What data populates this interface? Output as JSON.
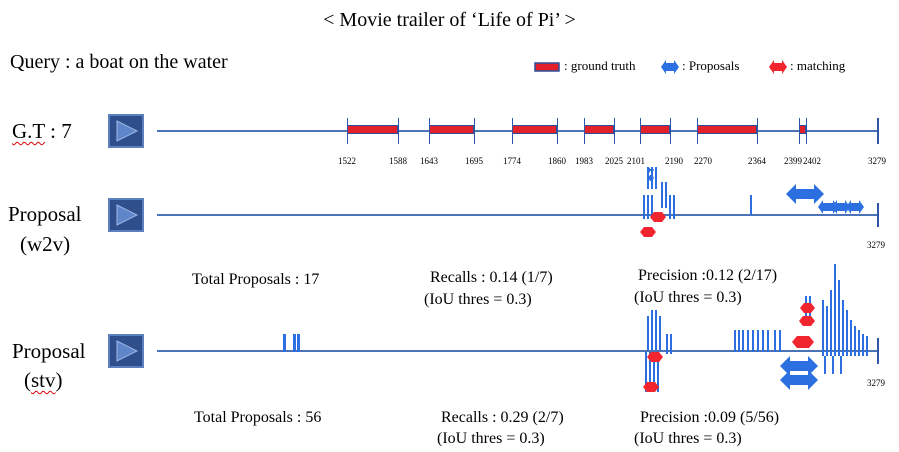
{
  "title": "< Movie trailer of ‘Life of Pi’ >",
  "query": {
    "prefix": "Query : ",
    "text": "a boat on the water"
  },
  "legend": {
    "ground_truth": ": ground truth",
    "proposals": ": Proposals",
    "matching": ": matching"
  },
  "colors": {
    "axis": "#4a73b8",
    "ground_truth": "#e3212b",
    "proposal": "#2b6fe0",
    "matching": "#f0252e",
    "play_button": "#2f4f8c"
  },
  "video_length": 3279,
  "gt_row": {
    "label_prefix": "G.T",
    "label_count": " : 7",
    "segments": [
      [
        1522,
        1588
      ],
      [
        1643,
        1695
      ],
      [
        1774,
        1860
      ],
      [
        1983,
        2025
      ],
      [
        2101,
        2190
      ],
      [
        2270,
        2364
      ],
      [
        2399,
        2402
      ]
    ],
    "tick_labels": [
      "1522",
      "1588",
      "1643",
      "1695",
      "1774",
      "1860",
      "1983",
      "2025",
      "2101",
      "2190",
      "2270",
      "2364",
      "2399",
      "2402",
      "3279"
    ]
  },
  "w2v_row": {
    "label_line1": "Proposal",
    "label_line2": "(w2v)",
    "end_label": "3279",
    "total_proposals": "Total Proposals : 17",
    "recalls": "Recalls : 0.14 (1/7)",
    "recalls_thres": "(IoU thres = 0.3)",
    "precision": "Precision  :0.12 (2/17)",
    "precision_thres": "(IoU thres = 0.3)"
  },
  "stv_row": {
    "label_line1": "Proposal",
    "label_line2": "(stv)",
    "end_label": "3279",
    "total_proposals": "Total Proposals : 56",
    "recalls": "Recalls : 0.29 (2/7)",
    "recalls_thres": "(IoU thres = 0.3)",
    "precision": "Precision  :0.09 (5/56)",
    "precision_thres": "(IoU thres = 0.3)"
  }
}
